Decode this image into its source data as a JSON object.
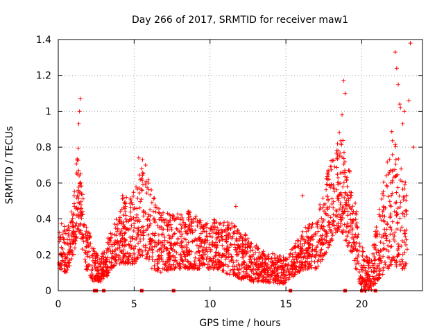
{
  "chart_data": {
    "type": "scatter",
    "title": "Day 266 of 2017, SRMTID for receiver maw1",
    "xlabel": "GPS time / hours",
    "ylabel": "SRMTID / TECUs",
    "xlim": [
      0,
      24
    ],
    "ylim": [
      0,
      1.4
    ],
    "xticks": [
      0,
      5,
      10,
      15,
      20
    ],
    "yticks": [
      0,
      0.2,
      0.4,
      0.6,
      0.8,
      1,
      1.2,
      1.4
    ],
    "ytick_labels": [
      "0",
      "0.2",
      "0.4",
      "0.6",
      "0.8",
      "1",
      "1.2",
      "1.4"
    ],
    "grid": true,
    "marker": "plus",
    "color": "#ff0000",
    "envelope": {
      "description": "typical spread of scattered SRMTID values over the day (hours, min TECU, max TECU)",
      "knots": [
        [
          0.0,
          0.12,
          0.42
        ],
        [
          0.5,
          0.1,
          0.35
        ],
        [
          1.0,
          0.18,
          0.5
        ],
        [
          1.3,
          0.35,
          0.85
        ],
        [
          1.5,
          0.25,
          0.65
        ],
        [
          1.8,
          0.12,
          0.4
        ],
        [
          2.3,
          0.05,
          0.25
        ],
        [
          2.8,
          0.05,
          0.18
        ],
        [
          3.2,
          0.08,
          0.28
        ],
        [
          3.8,
          0.15,
          0.4
        ],
        [
          4.3,
          0.15,
          0.55
        ],
        [
          5.0,
          0.15,
          0.55
        ],
        [
          5.6,
          0.2,
          0.72
        ],
        [
          6.2,
          0.12,
          0.55
        ],
        [
          6.8,
          0.1,
          0.45
        ],
        [
          7.5,
          0.12,
          0.42
        ],
        [
          8.5,
          0.12,
          0.45
        ],
        [
          9.5,
          0.12,
          0.4
        ],
        [
          10.5,
          0.12,
          0.4
        ],
        [
          11.5,
          0.08,
          0.38
        ],
        [
          12.5,
          0.05,
          0.3
        ],
        [
          13.5,
          0.05,
          0.22
        ],
        [
          14.5,
          0.04,
          0.2
        ],
        [
          15.0,
          0.04,
          0.18
        ],
        [
          15.5,
          0.08,
          0.25
        ],
        [
          16.2,
          0.12,
          0.35
        ],
        [
          17.0,
          0.12,
          0.42
        ],
        [
          17.6,
          0.2,
          0.6
        ],
        [
          18.2,
          0.3,
          0.85
        ],
        [
          18.6,
          0.35,
          0.95
        ],
        [
          19.0,
          0.25,
          0.7
        ],
        [
          19.4,
          0.2,
          0.65
        ],
        [
          19.8,
          0.05,
          0.35
        ],
        [
          20.2,
          0.0,
          0.2
        ],
        [
          20.6,
          0.0,
          0.18
        ],
        [
          21.0,
          0.05,
          0.4
        ],
        [
          21.5,
          0.1,
          0.65
        ],
        [
          22.0,
          0.15,
          0.9
        ],
        [
          22.5,
          0.12,
          0.7
        ],
        [
          23.0,
          0.12,
          0.6
        ]
      ]
    },
    "notable_points": [
      {
        "x": 1.45,
        "y": 1.07
      },
      {
        "x": 1.4,
        "y": 1.0
      },
      {
        "x": 1.35,
        "y": 0.93
      },
      {
        "x": 18.8,
        "y": 1.17
      },
      {
        "x": 18.9,
        "y": 1.1
      },
      {
        "x": 18.7,
        "y": 0.98
      },
      {
        "x": 22.2,
        "y": 1.33
      },
      {
        "x": 22.3,
        "y": 1.24
      },
      {
        "x": 22.4,
        "y": 1.15
      },
      {
        "x": 22.5,
        "y": 1.04
      },
      {
        "x": 22.55,
        "y": 1.02
      },
      {
        "x": 22.7,
        "y": 0.93
      },
      {
        "x": 22.8,
        "y": 1.0
      },
      {
        "x": 23.1,
        "y": 1.06
      },
      {
        "x": 23.2,
        "y": 1.38
      },
      {
        "x": 5.3,
        "y": 0.74
      },
      {
        "x": 5.55,
        "y": 0.73
      },
      {
        "x": 5.75,
        "y": 0.7
      },
      {
        "x": 11.7,
        "y": 0.47
      },
      {
        "x": 16.1,
        "y": 0.53
      },
      {
        "x": 23.4,
        "y": 0.8
      }
    ],
    "zero_markers": [
      2.4,
      2.5,
      3.0,
      5.5,
      7.6,
      15.3,
      18.9,
      20.0,
      20.9
    ]
  }
}
